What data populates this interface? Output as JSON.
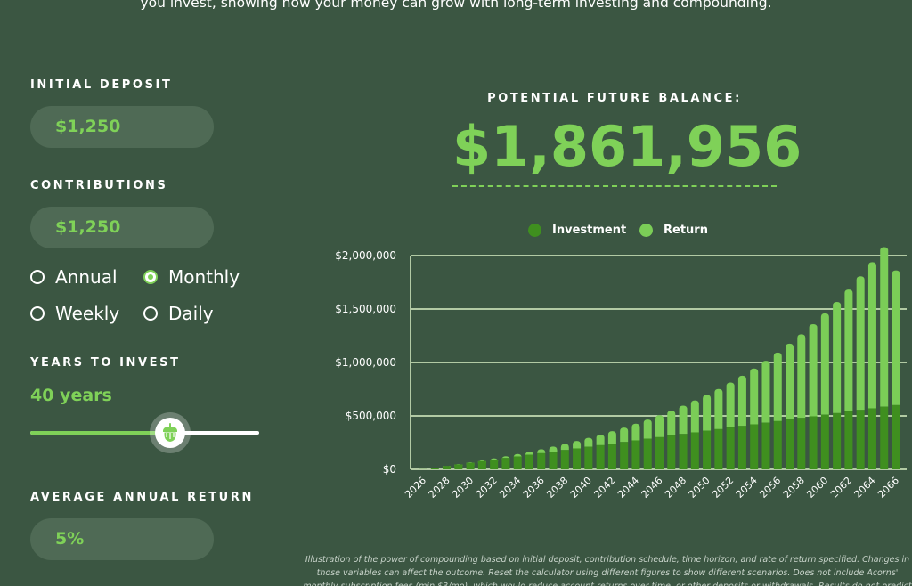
{
  "intro_text": "you invest, showing how your money can grow with long-term investing and compounding.",
  "initial_deposit": {
    "label": "INITIAL DEPOSIT",
    "value": "$1,250"
  },
  "contributions": {
    "label": "CONTRIBUTIONS",
    "value": "$1,250",
    "frequency_options": [
      {
        "label": "Annual",
        "selected": false
      },
      {
        "label": "Monthly",
        "selected": true
      },
      {
        "label": "Weekly",
        "selected": false
      },
      {
        "label": "Daily",
        "selected": false
      }
    ]
  },
  "years_to_invest": {
    "label": "YEARS TO INVEST",
    "value_text": "40 years",
    "slider_fraction": 0.61,
    "thumb_icon": "acorn-icon"
  },
  "average_annual_return": {
    "label": "AVERAGE ANNUAL RETURN",
    "value": "5%"
  },
  "future_balance": {
    "label": "POTENTIAL FUTURE BALANCE:",
    "value": "$1,861,956"
  },
  "colors": {
    "background": "#3b5642",
    "accent": "#7fd158",
    "investment": "#3f8f1f",
    "return": "#7bcd57",
    "gridline": "#d9f0c4"
  },
  "chart_data": {
    "type": "bar",
    "stacked": true,
    "legend_position": "top",
    "grid": true,
    "ylim": [
      0,
      2000000
    ],
    "y_ticks": [
      "$0",
      "$500,000",
      "$1,000,000",
      "$1,500,000",
      "$2,000,000"
    ],
    "y_tick_values": [
      0,
      500000,
      1000000,
      1500000,
      2000000
    ],
    "x_tick_labels": [
      "2026",
      "2028",
      "2030",
      "2032",
      "2034",
      "2036",
      "2038",
      "2040",
      "2042",
      "2044",
      "2046",
      "2048",
      "2050",
      "2052",
      "2054",
      "2056",
      "2058",
      "2060",
      "2062",
      "2064",
      "2066"
    ],
    "categories": [
      "2026",
      "2027",
      "2028",
      "2029",
      "2030",
      "2031",
      "2032",
      "2033",
      "2034",
      "2035",
      "2036",
      "2037",
      "2038",
      "2039",
      "2040",
      "2041",
      "2042",
      "2043",
      "2044",
      "2045",
      "2046",
      "2047",
      "2048",
      "2049",
      "2050",
      "2051",
      "2052",
      "2053",
      "2054",
      "2055",
      "2056",
      "2057",
      "2058",
      "2059",
      "2060",
      "2061",
      "2062",
      "2063",
      "2064",
      "2065",
      "2066"
    ],
    "series": [
      {
        "name": "Investment",
        "values": [
          1250,
          16250,
          31250,
          46250,
          61250,
          76250,
          91250,
          106250,
          121250,
          136250,
          151250,
          166250,
          181250,
          196250,
          211250,
          226250,
          241250,
          256250,
          271250,
          286250,
          301250,
          316250,
          331250,
          346250,
          361250,
          376250,
          391250,
          406250,
          421250,
          436250,
          451250,
          466250,
          481250,
          496250,
          511250,
          526250,
          541250,
          556250,
          571250,
          586250,
          601250
        ]
      },
      {
        "name": "Return",
        "values": [
          0,
          350,
          1300,
          2900,
          5200,
          8300,
          12200,
          17000,
          22800,
          29700,
          37700,
          47000,
          57600,
          69700,
          83300,
          98600,
          115700,
          134700,
          155800,
          179100,
          204800,
          233100,
          264200,
          298300,
          335600,
          376300,
          420800,
          469300,
          522100,
          579500,
          641800,
          709400,
          782700,
          862100,
          948000,
          1040900,
          1141300,
          1249800,
          1366800,
          1493000,
          1260706
        ]
      }
    ]
  },
  "disclaimer": "Illustration of the power of compounding based on initial deposit, contribution schedule, time horizon, and rate of return specified. Changes in those variables can affect the outcome. Reset the calculator using different figures to show different scenarios. Does not include Acorns' monthly subscription fees (min $3/mo), which would reduce account returns over time, or other deposits or withdrawals. Results do not predict or represent"
}
